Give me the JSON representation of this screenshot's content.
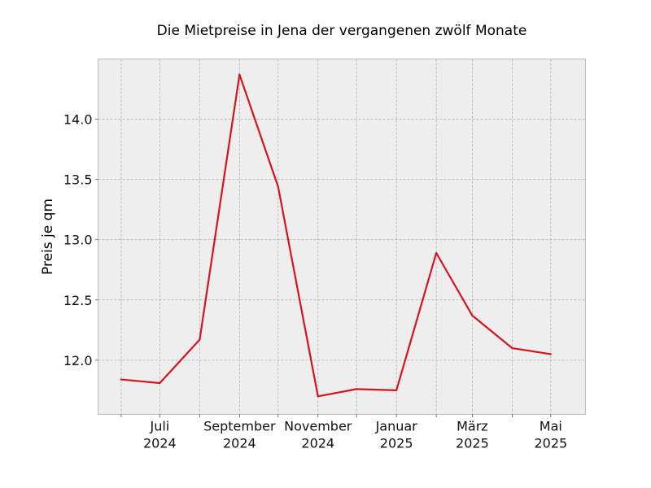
{
  "chart_data": {
    "type": "line",
    "title": "Die Mietpreise in Jena der vergangenen zwölf Monate",
    "xlabel": "",
    "ylabel": "Preis je qm",
    "x": [
      "2024-06",
      "2024-07",
      "2024-08",
      "2024-09",
      "2024-10",
      "2024-11",
      "2024-12",
      "2025-01",
      "2025-02",
      "2025-03",
      "2025-04",
      "2025-05"
    ],
    "series": [
      {
        "values": [
          11.84,
          11.81,
          12.17,
          14.37,
          13.44,
          11.7,
          11.76,
          11.75,
          12.89,
          12.37,
          12.1,
          12.05
        ],
        "color": "#d7141d"
      }
    ],
    "x_tick_labels": [
      {
        "x": "2024-07",
        "line1": "Juli",
        "line2": "2024"
      },
      {
        "x": "2024-09",
        "line1": "September",
        "line2": "2024"
      },
      {
        "x": "2024-11",
        "line1": "November",
        "line2": "2024"
      },
      {
        "x": "2025-01",
        "line1": "Januar",
        "line2": "2025"
      },
      {
        "x": "2025-03",
        "line1": "März",
        "line2": "2025"
      },
      {
        "x": "2025-05",
        "line1": "Mai",
        "line2": "2025"
      }
    ],
    "y_ticks": [
      12.0,
      12.5,
      13.0,
      13.5,
      14.0
    ],
    "y_tick_labels": [
      "12.0",
      "12.5",
      "13.0",
      "13.5",
      "14.0"
    ],
    "ylim": [
      11.55,
      14.5
    ],
    "xlim": [
      "2024-05-14",
      "2025-05-28"
    ],
    "grid": true,
    "colors": {
      "plot_background": "#eeeeee",
      "grid": "#b0b0b0",
      "frame": "#bcbcbc"
    }
  }
}
